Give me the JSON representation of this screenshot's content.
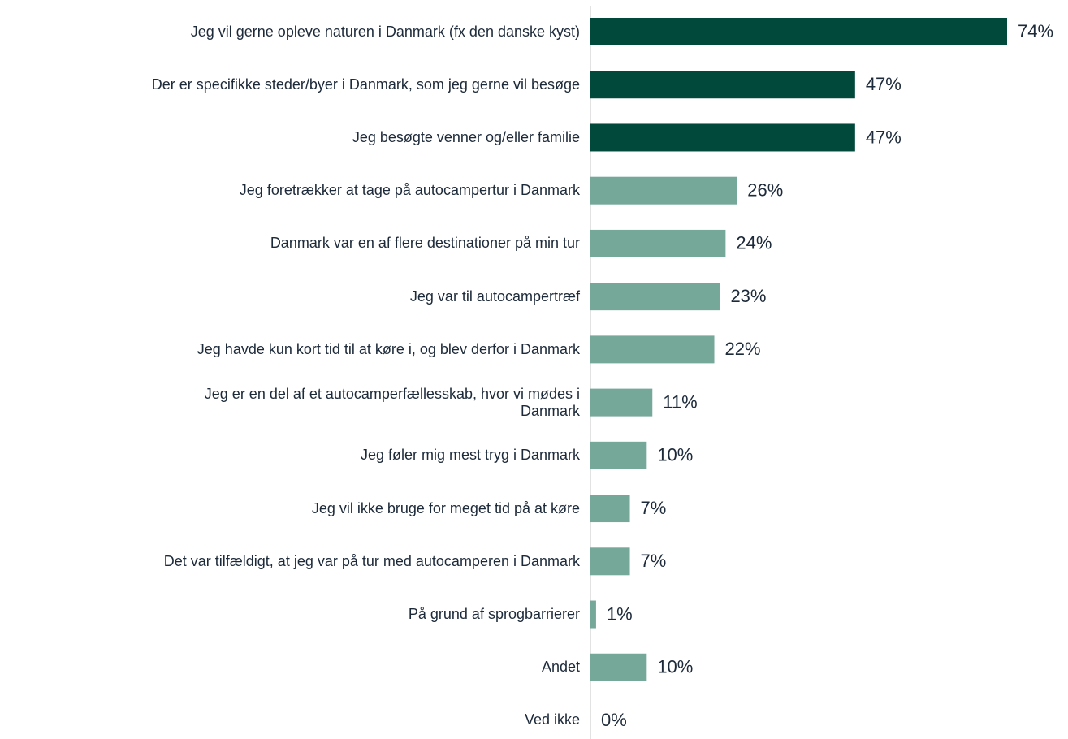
{
  "chart_data": {
    "type": "barh",
    "categories": [
      "Jeg vil gerne opleve naturen i Danmark (fx den danske kyst)",
      "Der er specifikke steder/byer i Danmark, som jeg gerne vil besøge",
      "Jeg besøgte venner og/eller familie",
      "Jeg foretrækker at tage på autocampertur i Danmark",
      "Danmark var en af flere destinationer på min tur",
      "Jeg var til autocampertræf",
      "Jeg havde kun kort tid til at køre i, og blev derfor i Danmark",
      "Jeg er en del af et autocamperfællesskab, hvor vi mødes i\nDanmark",
      "Jeg føler mig mest tryg i Danmark",
      "Jeg vil ikke bruge for meget tid på at køre",
      "Det var tilfældigt, at jeg var på tur med autocamperen i Danmark",
      "På grund af sprogbarrierer",
      "Andet",
      "Ved ikke"
    ],
    "values": [
      74,
      47,
      47,
      26,
      24,
      23,
      22,
      11,
      10,
      7,
      7,
      1,
      10,
      0
    ],
    "value_labels": [
      "74%",
      "47%",
      "47%",
      "26%",
      "24%",
      "23%",
      "22%",
      "11%",
      "10%",
      "7%",
      "7%",
      "1%",
      "10%",
      "0%"
    ],
    "colors": [
      "#00493b",
      "#00493b",
      "#00493b",
      "#76a89a",
      "#76a89a",
      "#76a89a",
      "#76a89a",
      "#76a89a",
      "#76a89a",
      "#76a89a",
      "#76a89a",
      "#76a89a",
      "#76a89a",
      "#76a89a"
    ]
  }
}
